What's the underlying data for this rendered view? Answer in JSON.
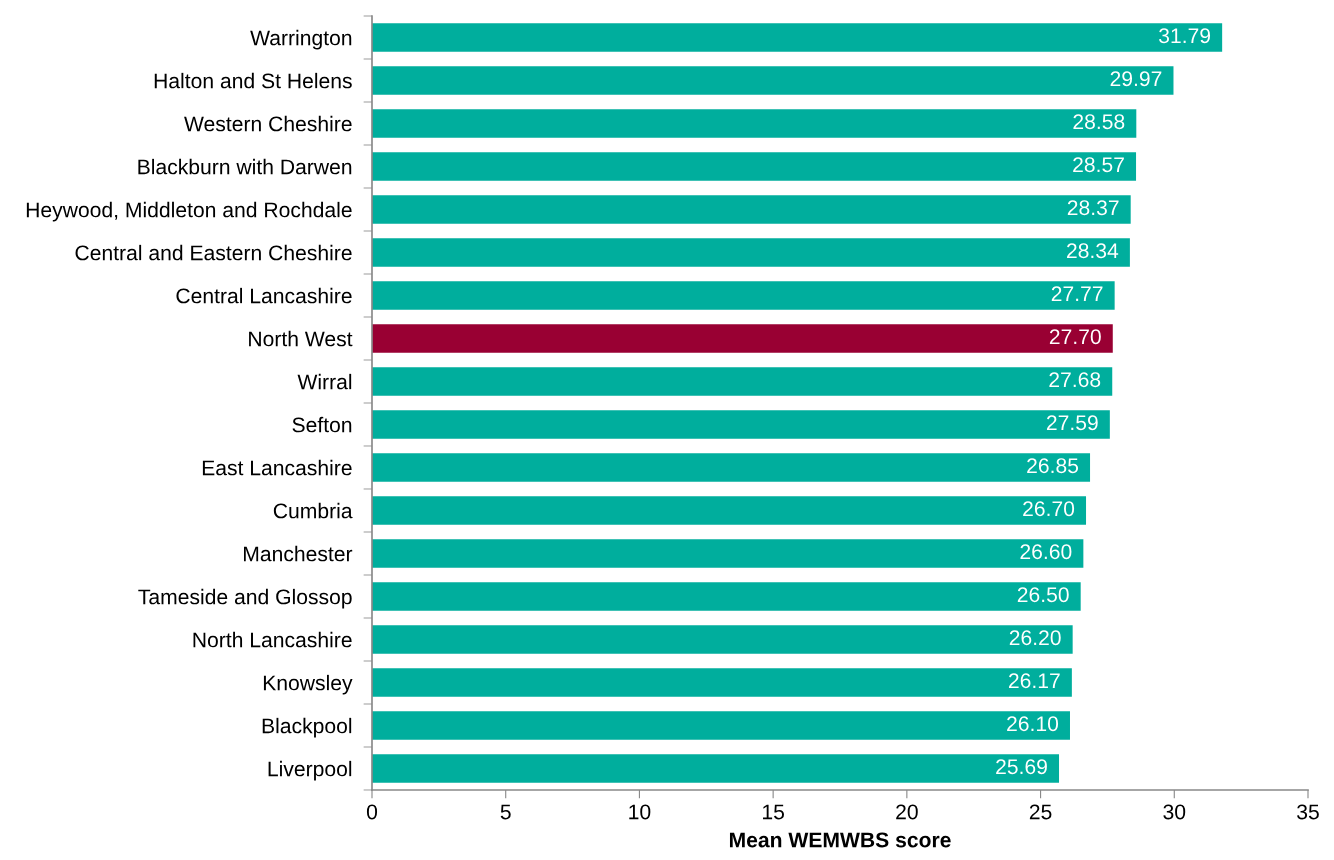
{
  "chart_data": {
    "type": "bar",
    "orientation": "horizontal",
    "xlabel": "Mean WEMWBS score",
    "categories": [
      "Warrington",
      "Halton and St Helens",
      "Western Cheshire",
      "Blackburn with Darwen",
      "Heywood, Middleton and Rochdale",
      "Central and Eastern Cheshire",
      "Central Lancashire",
      "North West",
      "Wirral",
      "Sefton",
      "East Lancashire",
      "Cumbria",
      "Manchester",
      "Tameside and Glossop",
      "North Lancashire",
      "Knowsley",
      "Blackpool",
      "Liverpool"
    ],
    "values": [
      31.79,
      29.97,
      28.58,
      28.57,
      28.37,
      28.34,
      27.77,
      27.7,
      27.68,
      27.59,
      26.85,
      26.7,
      26.6,
      26.5,
      26.2,
      26.17,
      26.1,
      25.69
    ],
    "value_labels": [
      "31.79",
      "29.97",
      "28.58",
      "28.57",
      "28.37",
      "28.34",
      "27.77",
      "27.70",
      "27.68",
      "27.59",
      "26.85",
      "26.70",
      "26.60",
      "26.50",
      "26.20",
      "26.17",
      "26.10",
      "25.69"
    ],
    "colors": [
      "#00ae9d",
      "#00ae9d",
      "#00ae9d",
      "#00ae9d",
      "#00ae9d",
      "#00ae9d",
      "#00ae9d",
      "#990033",
      "#00ae9d",
      "#00ae9d",
      "#00ae9d",
      "#00ae9d",
      "#00ae9d",
      "#00ae9d",
      "#00ae9d",
      "#00ae9d",
      "#00ae9d",
      "#00ae9d"
    ],
    "xlim": [
      0,
      35
    ],
    "xticks": [
      0,
      5,
      10,
      15,
      20,
      25,
      30,
      35
    ]
  }
}
